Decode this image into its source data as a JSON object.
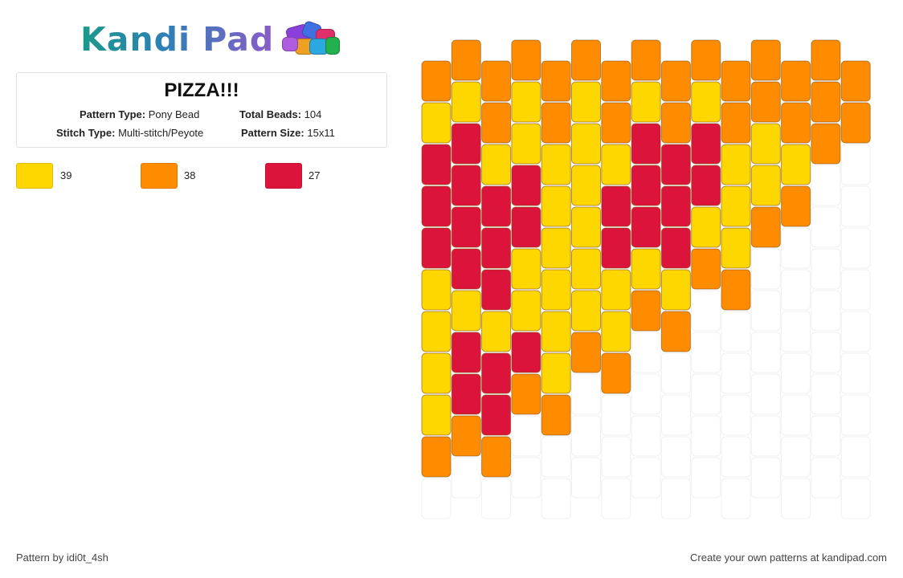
{
  "brand": {
    "name": "Kandi Pad"
  },
  "pattern": {
    "title": "PIZZA!!!",
    "type_label": "Pattern Type:",
    "type_value": "Pony Bead",
    "total_label": "Total Beads:",
    "total_value": "104",
    "stitch_label": "Stitch Type:",
    "stitch_value": "Multi-stitch/Peyote",
    "size_label": "Pattern Size:",
    "size_value": "15x11"
  },
  "legend": [
    {
      "color": "#FFD700",
      "count": "39"
    },
    {
      "color": "#FF8C00",
      "count": "38"
    },
    {
      "color": "#DC143C",
      "count": "27"
    }
  ],
  "grid": {
    "columns": 15,
    "palette": {
      "Y": "#FFD700",
      "O": "#FF8C00",
      "R": "#DC143C"
    },
    "column_offsets": [
      1,
      0,
      1,
      0,
      1,
      0,
      1,
      0,
      1,
      0,
      1,
      0,
      1,
      0,
      1
    ],
    "column_beads": [
      [
        "O",
        "Y",
        "R",
        "R",
        "R",
        "Y",
        "Y",
        "Y",
        "Y",
        "O"
      ],
      [
        "O",
        "Y",
        "R",
        "R",
        "R",
        "R",
        "Y",
        "R",
        "R",
        "O"
      ],
      [
        "O",
        "O",
        "Y",
        "R",
        "R",
        "R",
        "Y",
        "R",
        "R",
        "O"
      ],
      [
        "O",
        "Y",
        "Y",
        "R",
        "R",
        "Y",
        "Y",
        "R",
        "O"
      ],
      [
        "O",
        "O",
        "Y",
        "Y",
        "Y",
        "Y",
        "Y",
        "Y",
        "O"
      ],
      [
        "O",
        "Y",
        "Y",
        "Y",
        "Y",
        "Y",
        "Y",
        "O"
      ],
      [
        "O",
        "O",
        "Y",
        "R",
        "R",
        "Y",
        "Y",
        "O"
      ],
      [
        "O",
        "Y",
        "R",
        "R",
        "R",
        "Y",
        "O"
      ],
      [
        "O",
        "O",
        "R",
        "R",
        "R",
        "Y",
        "O"
      ],
      [
        "O",
        "Y",
        "R",
        "R",
        "Y",
        "O"
      ],
      [
        "O",
        "O",
        "Y",
        "Y",
        "Y",
        "O"
      ],
      [
        "O",
        "O",
        "Y",
        "Y",
        "O"
      ],
      [
        "O",
        "O",
        "Y",
        "O"
      ],
      [
        "O",
        "O",
        "O"
      ],
      [
        "O",
        "O"
      ]
    ]
  },
  "footer": {
    "left": "Pattern by idi0t_4sh",
    "right": "Create your own patterns at kandipad.com"
  }
}
